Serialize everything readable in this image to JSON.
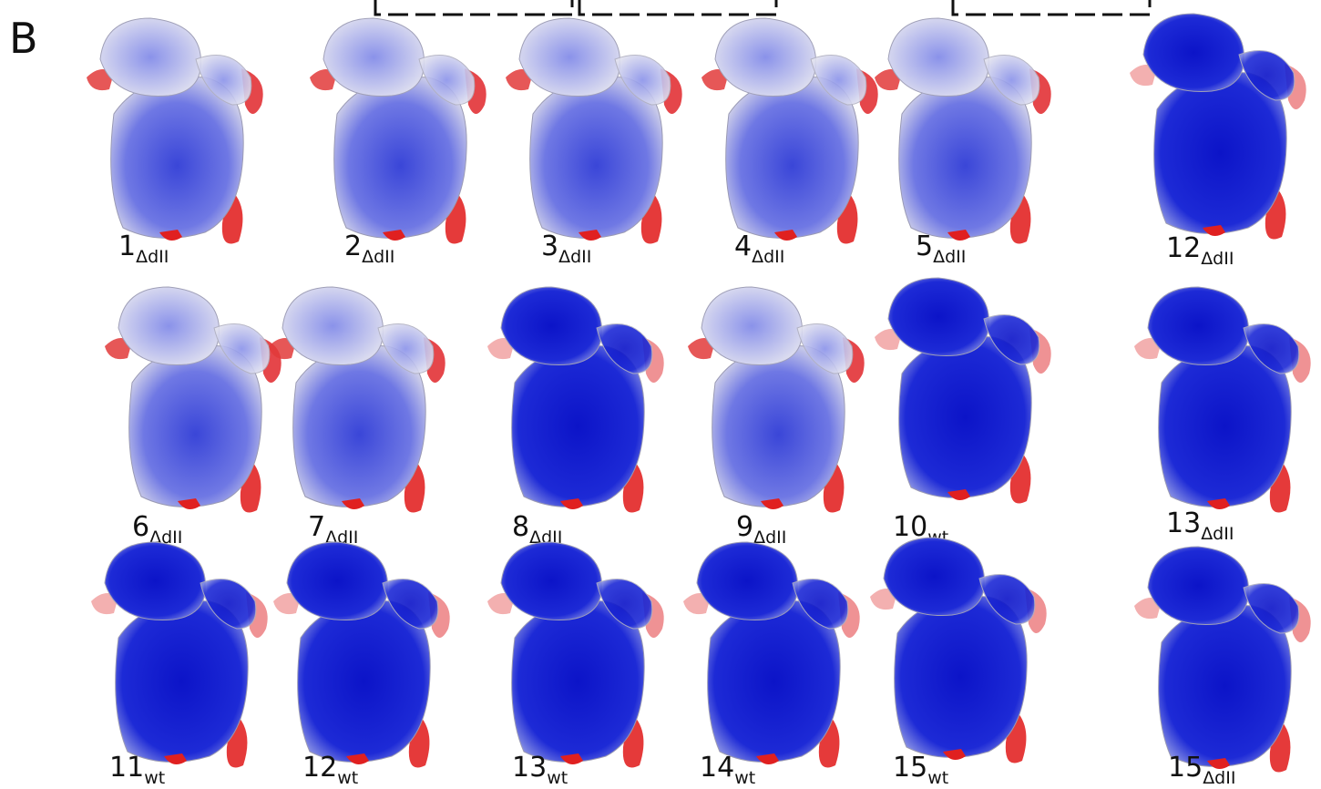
{
  "panel_label": "B",
  "maps": [
    {
      "number": "1",
      "subscript": "ΔdII"
    },
    {
      "number": "2",
      "subscript": "ΔdII"
    },
    {
      "number": "3",
      "subscript": "ΔdII"
    },
    {
      "number": "4",
      "subscript": "ΔdII"
    },
    {
      "number": "5",
      "subscript": "ΔdII"
    },
    {
      "number": "12",
      "subscript": "ΔdII"
    },
    {
      "number": "6",
      "subscript": "ΔdII"
    },
    {
      "number": "7",
      "subscript": "ΔdII"
    },
    {
      "number": "8",
      "subscript": "ΔdII"
    },
    {
      "number": "9",
      "subscript": "ΔdII"
    },
    {
      "number": "10",
      "subscript": "wt"
    },
    {
      "number": "13",
      "subscript": "ΔdII"
    },
    {
      "number": "11",
      "subscript": "wt"
    },
    {
      "number": "12",
      "subscript": "wt"
    },
    {
      "number": "13",
      "subscript": "wt"
    },
    {
      "number": "14",
      "subscript": "wt"
    },
    {
      "number": "15",
      "subscript": "wt"
    },
    {
      "number": "15",
      "subscript": "ΔdII"
    }
  ]
}
